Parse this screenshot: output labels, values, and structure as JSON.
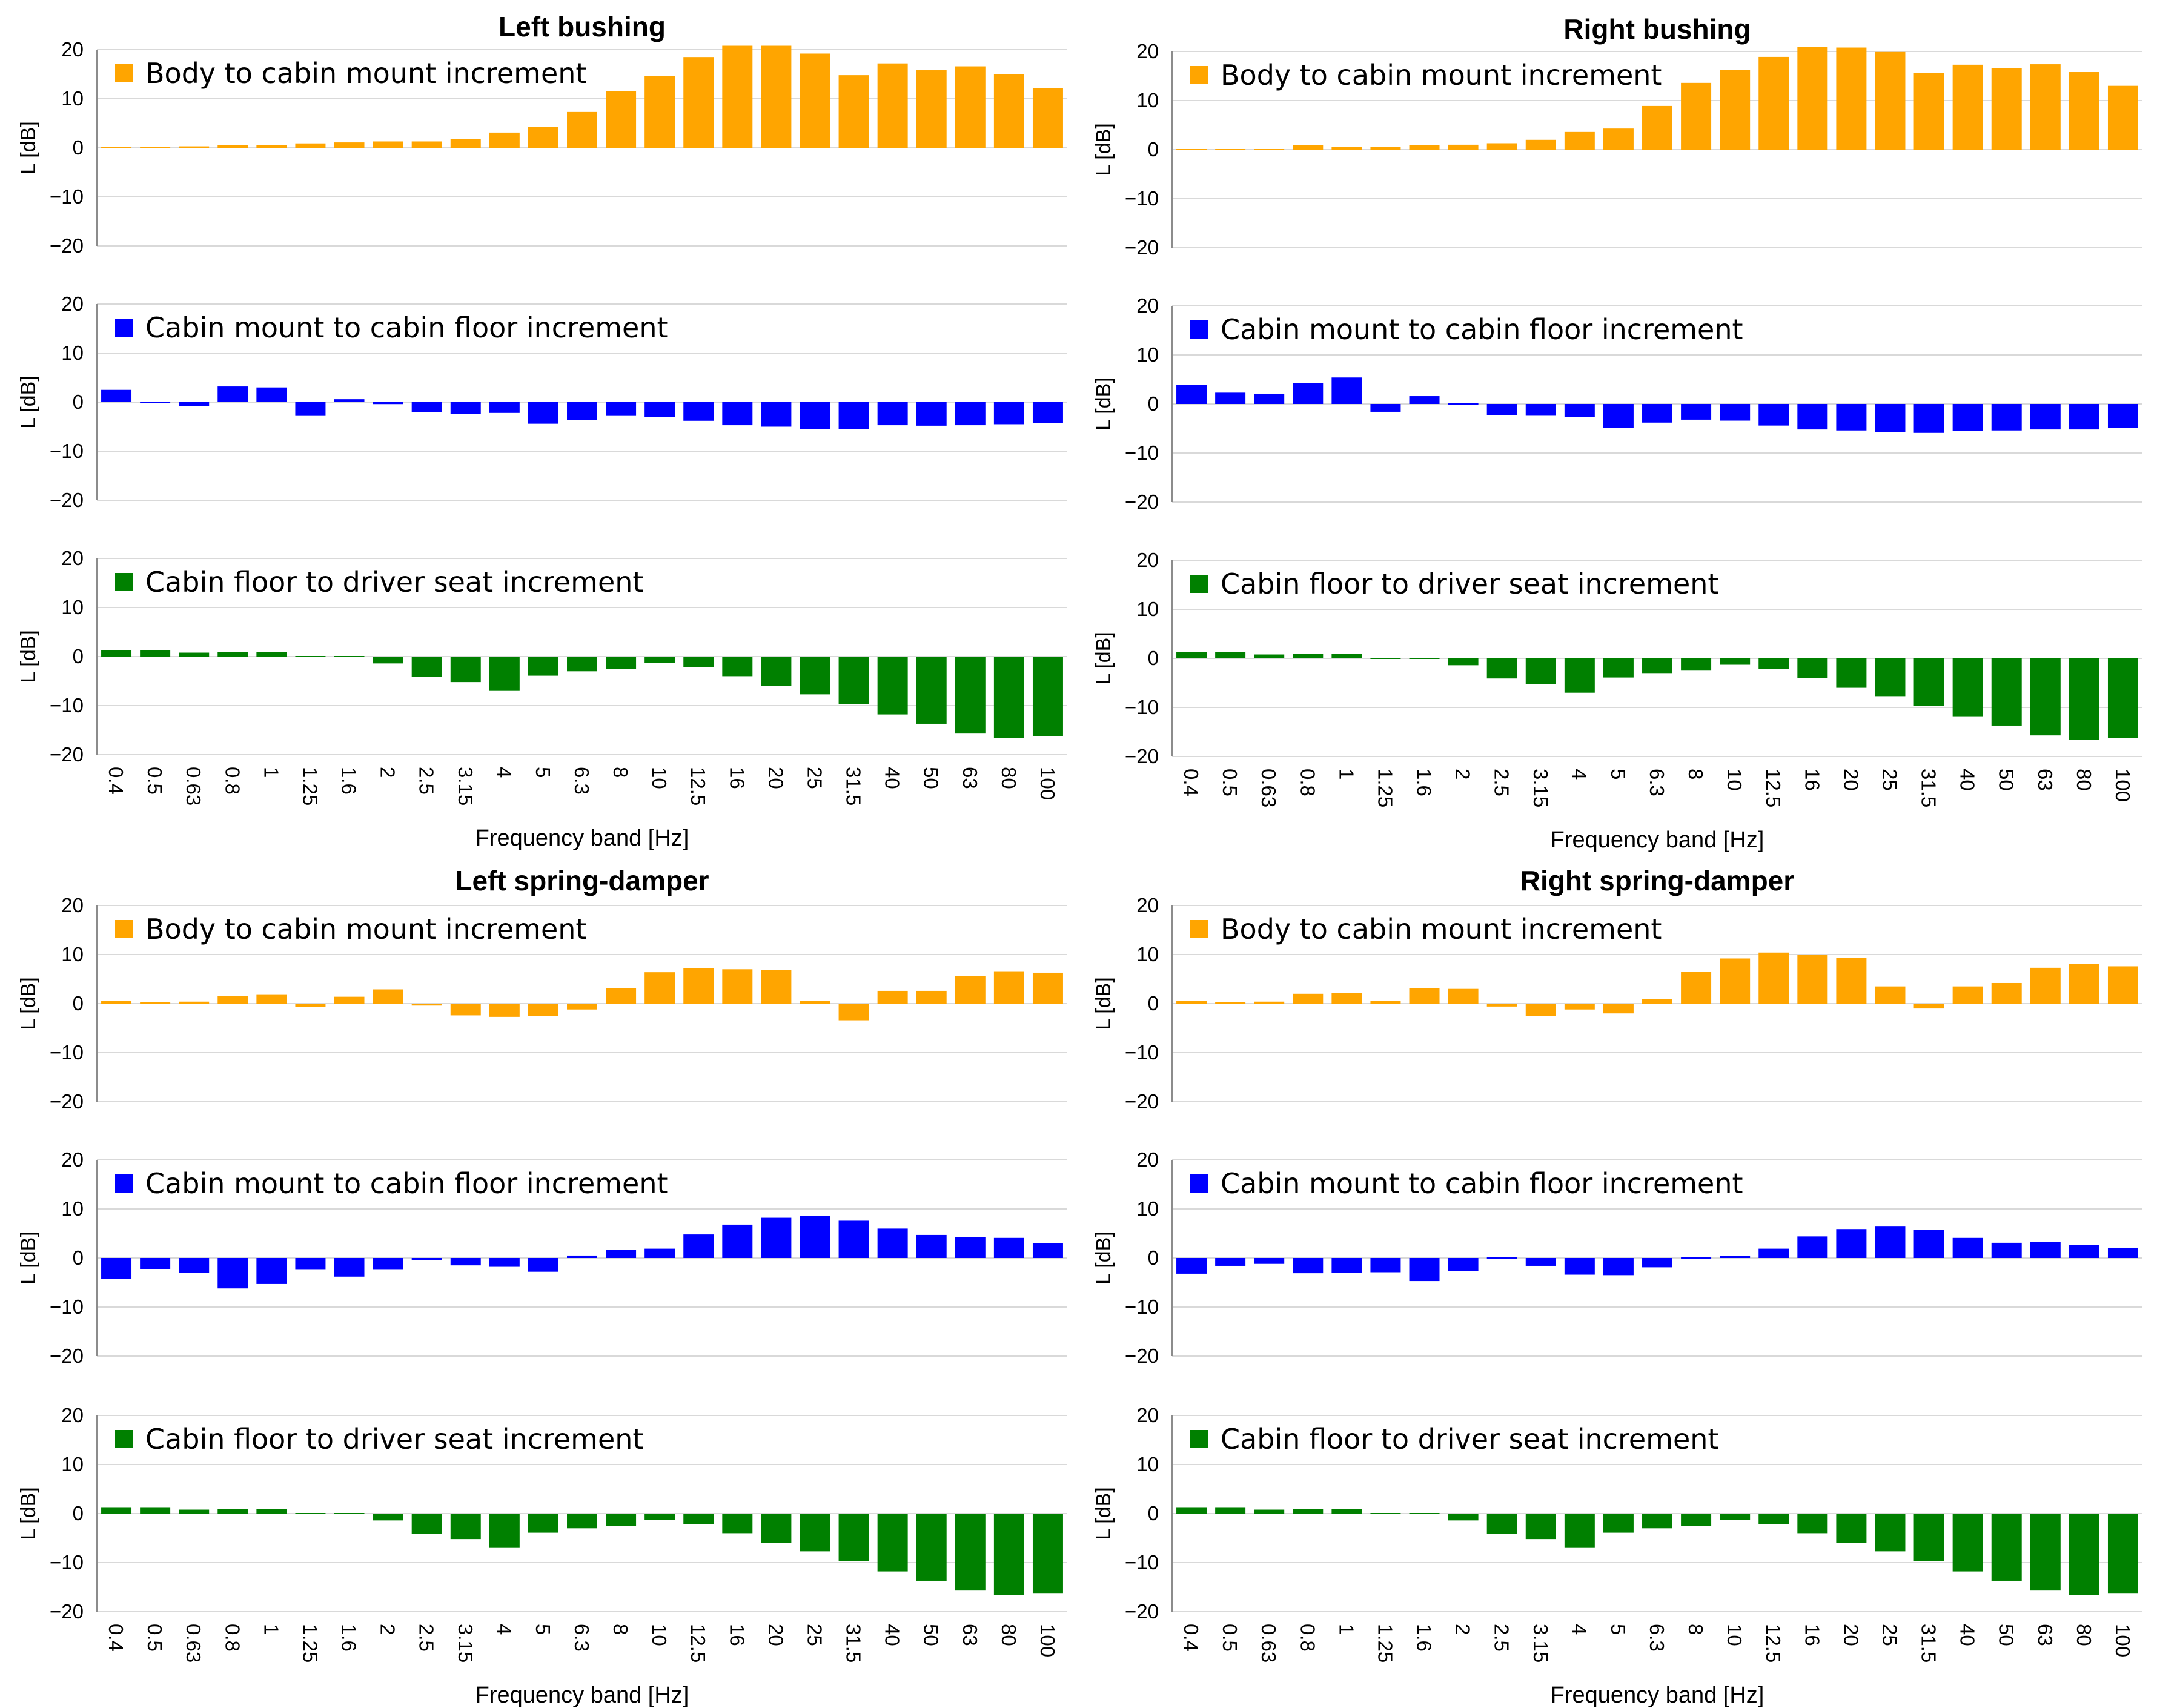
{
  "colors": {
    "body_to_cabin_mount": "#FFA500",
    "cabin_mount_to_floor": "#0000FF",
    "floor_to_seat": "#008000"
  },
  "chart_data": [
    {
      "type": "bar",
      "title": "Left bushing",
      "xlabel": "Frequency band [Hz]",
      "ylabel": "L [dB]",
      "ylim": [
        -20,
        20
      ],
      "yticks": [
        20,
        10,
        0,
        -10,
        -20
      ],
      "categories": [
        "0.4",
        "0.5",
        "0.63",
        "0.8",
        "1",
        "1.25",
        "1.6",
        "2",
        "2.5",
        "3.15",
        "4",
        "5",
        "6.3",
        "8",
        "10",
        "12.5",
        "16",
        "20",
        "25",
        "31.5",
        "40",
        "50",
        "63",
        "80",
        "100"
      ],
      "subplots": [
        {
          "series": [
            {
              "name": "Body to cabin mount increment",
              "color": "#FFA500",
              "values": [
                0.1,
                0.2,
                0.3,
                0.5,
                0.6,
                0.9,
                1.1,
                1.3,
                1.3,
                1.8,
                3.1,
                4.3,
                7.3,
                11.5,
                14.6,
                18.5,
                20.8,
                20.8,
                19.2,
                14.8,
                17.2,
                15.8,
                16.6,
                15.0,
                12.2
              ]
            }
          ]
        },
        {
          "series": [
            {
              "name": "Cabin mount to cabin floor increment",
              "color": "#0000FF",
              "values": [
                2.5,
                0.2,
                -0.8,
                3.2,
                3.0,
                -2.8,
                0.6,
                -0.4,
                -2.0,
                -2.4,
                -2.2,
                -4.4,
                -3.7,
                -2.8,
                -3.0,
                -3.8,
                -4.7,
                -5.0,
                -5.5,
                -5.5,
                -4.7,
                -4.8,
                -4.7,
                -4.5,
                -4.2
              ]
            }
          ]
        },
        {
          "series": [
            {
              "name": "Cabin floor to driver seat increment",
              "color": "#008000",
              "values": [
                1.3,
                1.3,
                0.8,
                0.9,
                0.9,
                -0.2,
                -0.2,
                -1.4,
                -4.1,
                -5.2,
                -7.0,
                -3.9,
                -3.0,
                -2.5,
                -1.3,
                -2.2,
                -4.0,
                -6.0,
                -7.7,
                -9.7,
                -11.8,
                -13.7,
                -15.7,
                -16.6,
                -16.2
              ]
            }
          ]
        }
      ]
    },
    {
      "type": "bar",
      "title": "Right bushing",
      "xlabel": "Frequency band [Hz]",
      "ylabel": "L [dB]",
      "ylim": [
        -20,
        20
      ],
      "yticks": [
        20,
        10,
        0,
        -10,
        -20
      ],
      "categories": [
        "0.4",
        "0.5",
        "0.63",
        "0.8",
        "1",
        "1.25",
        "1.6",
        "2",
        "2.5",
        "3.15",
        "4",
        "5",
        "6.3",
        "8",
        "10",
        "12.5",
        "16",
        "20",
        "25",
        "31.5",
        "40",
        "50",
        "63",
        "80",
        "100"
      ],
      "subplots": [
        {
          "series": [
            {
              "name": "Body to cabin mount increment",
              "color": "#FFA500",
              "values": [
                0.1,
                0.1,
                0.1,
                0.9,
                0.6,
                0.6,
                0.9,
                1.0,
                1.3,
                2.0,
                3.6,
                4.3,
                8.9,
                13.6,
                16.2,
                18.9,
                20.9,
                20.8,
                19.9,
                15.6,
                17.3,
                16.6,
                17.4,
                15.8,
                13.0
              ]
            }
          ]
        },
        {
          "series": [
            {
              "name": "Cabin mount to cabin floor increment",
              "color": "#0000FF",
              "values": [
                3.9,
                2.3,
                2.1,
                4.3,
                5.4,
                -1.6,
                1.6,
                0.1,
                -2.3,
                -2.4,
                -2.6,
                -4.9,
                -3.8,
                -3.2,
                -3.4,
                -4.4,
                -5.2,
                -5.4,
                -5.8,
                -5.9,
                -5.5,
                -5.4,
                -5.2,
                -5.2,
                -4.9
              ]
            }
          ]
        },
        {
          "series": [
            {
              "name": "Cabin floor to driver seat increment",
              "color": "#008000",
              "values": [
                1.3,
                1.3,
                0.8,
                0.9,
                0.9,
                -0.2,
                -0.2,
                -1.4,
                -4.1,
                -5.2,
                -7.0,
                -3.9,
                -3.0,
                -2.5,
                -1.3,
                -2.2,
                -4.0,
                -6.0,
                -7.7,
                -9.7,
                -11.8,
                -13.7,
                -15.7,
                -16.6,
                -16.2
              ]
            }
          ]
        }
      ]
    },
    {
      "type": "bar",
      "title": "Left spring-damper",
      "xlabel": "Frequency band [Hz]",
      "ylabel": "L [dB]",
      "ylim": [
        -20,
        20
      ],
      "yticks": [
        20,
        10,
        0,
        -10,
        -20
      ],
      "categories": [
        "0.4",
        "0.5",
        "0.63",
        "0.8",
        "1",
        "1.25",
        "1.6",
        "2",
        "2.5",
        "3.15",
        "4",
        "5",
        "6.3",
        "8",
        "10",
        "12.5",
        "16",
        "20",
        "25",
        "31.5",
        "40",
        "50",
        "63",
        "80",
        "100"
      ],
      "subplots": [
        {
          "series": [
            {
              "name": "Body to cabin mount increment",
              "color": "#FFA500",
              "values": [
                0.6,
                0.3,
                0.4,
                1.6,
                1.9,
                -0.7,
                1.4,
                2.9,
                -0.4,
                -2.4,
                -2.7,
                -2.5,
                -1.2,
                3.2,
                6.4,
                7.2,
                7.0,
                6.9,
                0.6,
                -3.4,
                2.6,
                2.6,
                5.6,
                6.6,
                6.3
              ]
            }
          ]
        },
        {
          "series": [
            {
              "name": "Cabin mount to cabin floor increment",
              "color": "#0000FF",
              "values": [
                -4.2,
                -2.3,
                -3.0,
                -6.2,
                -5.3,
                -2.4,
                -3.8,
                -2.4,
                -0.4,
                -1.5,
                -1.8,
                -2.8,
                0.5,
                1.7,
                1.9,
                4.8,
                6.8,
                8.2,
                8.6,
                7.6,
                6.0,
                4.7,
                4.2,
                4.1,
                3.0
              ]
            }
          ]
        },
        {
          "series": [
            {
              "name": "Cabin floor to driver seat increment",
              "color": "#008000",
              "values": [
                1.3,
                1.3,
                0.8,
                0.9,
                0.9,
                -0.2,
                -0.2,
                -1.4,
                -4.1,
                -5.2,
                -7.0,
                -3.9,
                -3.0,
                -2.5,
                -1.3,
                -2.2,
                -4.0,
                -6.0,
                -7.7,
                -9.7,
                -11.8,
                -13.7,
                -15.7,
                -16.6,
                -16.2
              ]
            }
          ]
        }
      ]
    },
    {
      "type": "bar",
      "title": "Right spring-damper",
      "xlabel": "Frequency band [Hz]",
      "ylabel": "L [dB]",
      "ylim": [
        -20,
        20
      ],
      "yticks": [
        20,
        10,
        0,
        -10,
        -20
      ],
      "categories": [
        "0.4",
        "0.5",
        "0.63",
        "0.8",
        "1",
        "1.25",
        "1.6",
        "2",
        "2.5",
        "3.15",
        "4",
        "5",
        "6.3",
        "8",
        "10",
        "12.5",
        "16",
        "20",
        "25",
        "31.5",
        "40",
        "50",
        "63",
        "80",
        "100"
      ],
      "subplots": [
        {
          "series": [
            {
              "name": "Body to cabin mount increment",
              "color": "#FFA500",
              "values": [
                0.6,
                0.3,
                0.4,
                2.0,
                2.2,
                0.6,
                3.2,
                3.0,
                -0.6,
                -2.5,
                -1.2,
                -2.0,
                0.9,
                6.5,
                9.2,
                10.4,
                9.9,
                9.3,
                3.5,
                -1.0,
                3.5,
                4.2,
                7.3,
                8.1,
                7.6
              ]
            }
          ]
        },
        {
          "series": [
            {
              "name": "Cabin mount to cabin floor increment",
              "color": "#0000FF",
              "values": [
                -3.2,
                -1.6,
                -1.2,
                -3.1,
                -3.0,
                -2.9,
                -4.7,
                -2.6,
                0.0,
                -1.6,
                -3.4,
                -3.5,
                -1.9,
                0.0,
                0.4,
                1.9,
                4.4,
                5.9,
                6.4,
                5.7,
                4.1,
                3.1,
                3.3,
                2.6,
                2.1
              ]
            }
          ]
        },
        {
          "series": [
            {
              "name": "Cabin floor to driver seat increment",
              "color": "#008000",
              "values": [
                1.3,
                1.3,
                0.8,
                0.9,
                0.9,
                -0.2,
                -0.2,
                -1.4,
                -4.1,
                -5.2,
                -7.0,
                -3.9,
                -3.0,
                -2.5,
                -1.3,
                -2.2,
                -4.0,
                -6.0,
                -7.7,
                -9.7,
                -11.8,
                -13.7,
                -15.7,
                -16.6,
                -16.2
              ]
            }
          ]
        }
      ]
    }
  ]
}
